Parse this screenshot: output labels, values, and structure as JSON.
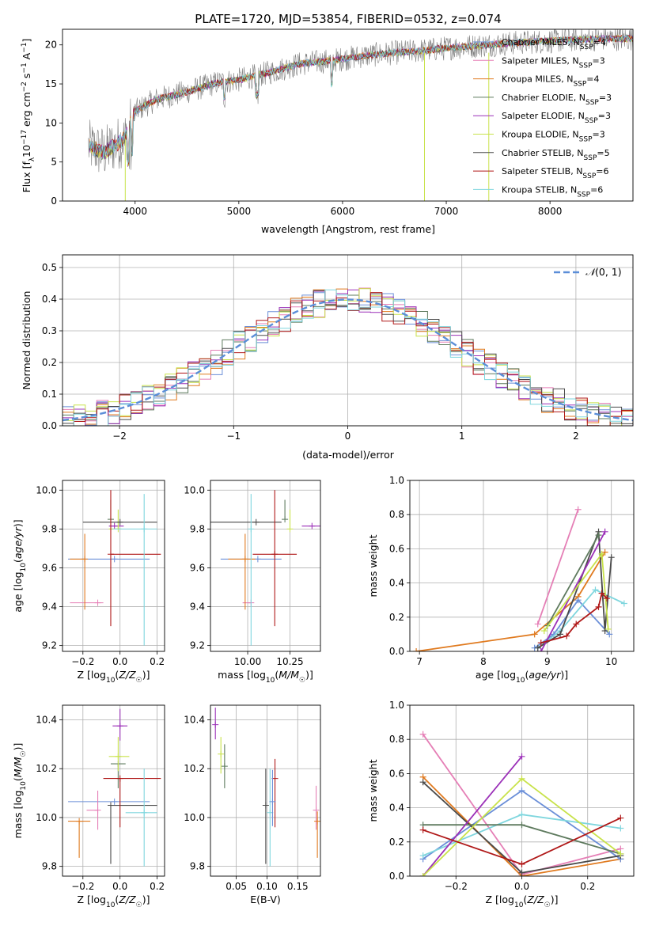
{
  "colors": {
    "Chabrier MILES": "#6b8fd8",
    "Salpeter MILES": "#e57fb6",
    "Kroupa MILES": "#e07a1f",
    "Chabrier ELODIE": "#5e7a5e",
    "Salpeter ELODIE": "#9b30b8",
    "Kroupa ELODIE": "#c8e24a",
    "Chabrier STELIB": "#4a4a4a",
    "Salpeter STELIB": "#b01818",
    "Kroupa STELIB": "#7fd6de"
  },
  "chart_data": [
    {
      "id": "spectrum",
      "type": "line",
      "title": "PLATE=1720, MJD=53854, FIBERID=0532, z=0.074",
      "xlabel": "wavelength [Angstrom, rest frame]",
      "ylabel": "Flux [f_λ10^-17 erg cm^-2 s^-1 A^-1]",
      "xlim": [
        3300,
        8800
      ],
      "ylim": [
        0,
        22
      ],
      "xticks": [
        4000,
        5000,
        6000,
        7000,
        8000
      ],
      "yticks": [
        0,
        5,
        10,
        15,
        20
      ],
      "legend": [
        "Chabrier MILES, N_SSP=4",
        "Salpeter MILES, N_SSP=3",
        "Kroupa MILES, N_SSP=4",
        "Chabrier ELODIE, N_SSP=3",
        "Salpeter ELODIE, N_SSP=3",
        "Kroupa ELODIE, N_SSP=3",
        "Chabrier STELIB, N_SSP=5",
        "Salpeter STELIB, N_SSP=6",
        "Kroupa STELIB, N_SSP=6"
      ],
      "data_trend": {
        "x": [
          3550,
          3700,
          3900,
          4000,
          4200,
          4500,
          4800,
          5000,
          5300,
          5600,
          5900,
          6200,
          6500,
          6800,
          7100,
          7400,
          7700,
          8000,
          8300,
          8600
        ],
        "y": [
          7.0,
          6.2,
          8.0,
          11.5,
          13.0,
          14.0,
          15.2,
          15.5,
          16.5,
          17.6,
          18.0,
          18.6,
          19.0,
          19.3,
          19.7,
          20.0,
          20.3,
          20.5,
          20.7,
          20.8
        ]
      }
    },
    {
      "id": "residuals",
      "type": "line",
      "xlabel": "(data-model)/error",
      "ylabel": "Normed distribution",
      "xlim": [
        -2.5,
        2.5
      ],
      "ylim": [
        0,
        0.54
      ],
      "xticks": [
        -2,
        -1,
        0,
        1,
        2
      ],
      "yticks": [
        0.0,
        0.1,
        0.2,
        0.3,
        0.4,
        0.5
      ],
      "legend": [
        "N(0,1)"
      ],
      "gaussian": {
        "mean": 0,
        "sigma": 1
      }
    },
    {
      "id": "age_vs_Z",
      "type": "scatter",
      "xlabel": "Z [log10(Z/Z☉)]",
      "ylabel": "age [log10(age/yr)]",
      "xlim": [
        -0.31,
        0.24
      ],
      "ylim": [
        9.17,
        10.05
      ],
      "xticks": [
        -0.2,
        0.0,
        0.2
      ],
      "yticks": [
        9.2,
        9.4,
        9.6,
        9.8,
        10.0
      ],
      "points": [
        {
          "model": "Chabrier MILES",
          "x": -0.03,
          "xerr": [
            0.25,
            0.19
          ],
          "y": 9.645,
          "yerr": [
            0.0,
            0.0
          ]
        },
        {
          "model": "Salpeter MILES",
          "x": -0.12,
          "xerr": [
            0.15,
            0.03
          ],
          "y": 9.42,
          "yerr": [
            0.0,
            0.0
          ]
        },
        {
          "model": "Kroupa MILES",
          "x": -0.19,
          "xerr": [
            0.08,
            0.0
          ],
          "y": 9.645,
          "yerr": [
            0.26,
            0.13
          ]
        },
        {
          "model": "Chabrier ELODIE",
          "x": -0.05,
          "xerr": [
            0.0,
            0.0
          ],
          "y": 9.85,
          "yerr": [
            0.0,
            0.1
          ]
        },
        {
          "model": "Salpeter ELODIE",
          "x": -0.03,
          "xerr": [
            0.03,
            0.05
          ],
          "y": 9.815,
          "yerr": [
            0.0,
            0.0
          ]
        },
        {
          "model": "Kroupa ELODIE",
          "x": -0.01,
          "xerr": [
            0.05,
            0.01
          ],
          "y": 9.8,
          "yerr": [
            0.0,
            0.1
          ]
        },
        {
          "model": "Chabrier STELIB",
          "x": 0.0,
          "xerr": [
            0.2,
            0.2
          ],
          "y": 9.835,
          "yerr": [
            0.0,
            0.0
          ]
        },
        {
          "model": "Salpeter STELIB",
          "x": -0.05,
          "xerr": [
            0.0,
            0.27
          ],
          "y": 9.67,
          "yerr": [
            0.37,
            0.33
          ]
        },
        {
          "model": "Kroupa STELIB",
          "x": 0.13,
          "xerr": [
            0.17,
            0.07
          ],
          "y": 9.8,
          "yerr": [
            0.6,
            0.18
          ]
        }
      ]
    },
    {
      "id": "age_vs_mass",
      "type": "scatter",
      "xlabel": "mass [log10(M/M☉)]",
      "ylabel": "",
      "xlim": [
        9.78,
        10.43
      ],
      "ylim": [
        9.17,
        10.05
      ],
      "xticks": [
        10.0,
        10.25
      ],
      "yticks": [
        9.2,
        9.4,
        9.6,
        9.8,
        10.0
      ],
      "points": [
        {
          "model": "Chabrier MILES",
          "x": 10.06,
          "xerr": [
            0.22,
            0.14
          ],
          "y": 9.645,
          "yerr": [
            0.0,
            0.0
          ]
        },
        {
          "model": "Salpeter MILES",
          "x": 10.02,
          "xerr": [
            0.05,
            0.0
          ],
          "y": 9.42,
          "yerr": [
            0.0,
            0.0
          ]
        },
        {
          "model": "Kroupa MILES",
          "x": 9.985,
          "xerr": [
            0.1,
            0.06
          ],
          "y": 9.645,
          "yerr": [
            0.26,
            0.13
          ]
        },
        {
          "model": "Chabrier ELODIE",
          "x": 10.22,
          "xerr": [
            0.0,
            0.0
          ],
          "y": 9.85,
          "yerr": [
            0.0,
            0.1
          ]
        },
        {
          "model": "Salpeter ELODIE",
          "x": 10.38,
          "xerr": [
            0.06,
            0.06
          ],
          "y": 9.815,
          "yerr": [
            0.0,
            0.0
          ]
        },
        {
          "model": "Kroupa ELODIE",
          "x": 10.25,
          "xerr": [
            0.0,
            0.0
          ],
          "y": 9.8,
          "yerr": [
            0.0,
            0.1
          ]
        },
        {
          "model": "Chabrier STELIB",
          "x": 10.05,
          "xerr": [
            0.3,
            0.15
          ],
          "y": 9.835,
          "yerr": [
            0.0,
            0.0
          ]
        },
        {
          "model": "Salpeter STELIB",
          "x": 10.16,
          "xerr": [
            0.13,
            0.13
          ],
          "y": 9.67,
          "yerr": [
            0.37,
            0.33
          ]
        },
        {
          "model": "Kroupa STELIB",
          "x": 10.02,
          "xerr": [
            0.0,
            0.0
          ],
          "y": 9.8,
          "yerr": [
            0.6,
            0.18
          ]
        }
      ]
    },
    {
      "id": "weights_vs_age",
      "type": "line",
      "xlabel": "age [log10(age/yr)]",
      "ylabel": "mass weight",
      "xlim": [
        6.85,
        10.35
      ],
      "ylim": [
        0,
        1.0
      ],
      "xticks": [
        7,
        8,
        9,
        10
      ],
      "yticks": [
        0.0,
        0.2,
        0.4,
        0.6,
        0.8,
        1.0
      ],
      "series": [
        {
          "model": "Salpeter MILES",
          "x": [
            8.85,
            9.48
          ],
          "y": [
            0.16,
            0.83
          ]
        },
        {
          "model": "Kroupa MILES",
          "x": [
            6.95,
            8.8,
            9.48,
            9.9
          ],
          "y": [
            0.0,
            0.1,
            0.32,
            0.58
          ]
        },
        {
          "model": "Chabrier MILES",
          "x": [
            8.8,
            9.1,
            9.48,
            9.97
          ],
          "y": [
            0.02,
            0.1,
            0.3,
            0.1
          ]
        },
        {
          "model": "Kroupa STELIB",
          "x": [
            8.85,
            9.2,
            9.75,
            10.2
          ],
          "y": [
            0.02,
            0.12,
            0.36,
            0.28
          ]
        },
        {
          "model": "Chabrier STELIB",
          "x": [
            8.85,
            9.2,
            9.8,
            9.9,
            10.0
          ],
          "y": [
            0.02,
            0.1,
            0.7,
            0.12,
            0.55
          ]
        },
        {
          "model": "Chabrier ELODIE",
          "x": [
            9.0,
            9.8
          ],
          "y": [
            0.15,
            0.68
          ]
        },
        {
          "model": "Salpeter ELODIE",
          "x": [
            8.9,
            9.9
          ],
          "y": [
            0.0,
            0.7
          ]
        },
        {
          "model": "Kroupa ELODIE",
          "x": [
            8.95,
            9.85,
            9.95
          ],
          "y": [
            0.12,
            0.57,
            0.13
          ]
        },
        {
          "model": "Salpeter STELIB",
          "x": [
            8.9,
            9.3,
            9.45,
            9.8,
            9.85,
            9.93
          ],
          "y": [
            0.05,
            0.09,
            0.16,
            0.26,
            0.34,
            0.31
          ]
        }
      ]
    },
    {
      "id": "mass_vs_Z",
      "type": "scatter",
      "xlabel": "Z [log10(Z/Z☉)]",
      "ylabel": "mass [log10(M/M☉)]",
      "xlim": [
        -0.31,
        0.24
      ],
      "ylim": [
        9.76,
        10.46
      ],
      "xticks": [
        -0.2,
        0.0,
        0.2
      ],
      "yticks": [
        9.8,
        10.0,
        10.2,
        10.4
      ],
      "points": [
        {
          "model": "Chabrier MILES",
          "x": -0.03,
          "xerr": [
            0.25,
            0.19
          ],
          "y": 10.065,
          "yerr": [
            0.0,
            0.0
          ]
        },
        {
          "model": "Salpeter MILES",
          "x": -0.12,
          "xerr": [
            0.06,
            0.0
          ],
          "y": 10.03,
          "yerr": [
            0.08,
            0.08
          ]
        },
        {
          "model": "Kroupa MILES",
          "x": -0.22,
          "xerr": [
            0.06,
            0.06
          ],
          "y": 9.985,
          "yerr": [
            0.15,
            0.0
          ]
        },
        {
          "model": "Chabrier ELODIE",
          "x": -0.01,
          "xerr": [
            0.04,
            0.04
          ],
          "y": 10.22,
          "yerr": [
            0.1,
            0.0
          ]
        },
        {
          "model": "Salpeter ELODIE",
          "x": 0.0,
          "xerr": [
            0.04,
            0.04
          ],
          "y": 10.375,
          "yerr": [
            0.06,
            0.07
          ]
        },
        {
          "model": "Kroupa ELODIE",
          "x": -0.01,
          "xerr": [
            0.05,
            0.06
          ],
          "y": 10.25,
          "yerr": [
            0.06,
            0.08
          ]
        },
        {
          "model": "Chabrier STELIB",
          "x": -0.05,
          "xerr": [
            0.0,
            0.25
          ],
          "y": 10.05,
          "yerr": [
            0.24,
            0.0
          ]
        },
        {
          "model": "Salpeter STELIB",
          "x": 0.0,
          "xerr": [
            0.09,
            0.22
          ],
          "y": 10.16,
          "yerr": [
            0.2,
            0.0
          ]
        },
        {
          "model": "Kroupa STELIB",
          "x": 0.13,
          "xerr": [
            0.1,
            0.07
          ],
          "y": 10.02,
          "yerr": [
            0.22,
            0.18
          ]
        }
      ]
    },
    {
      "id": "mass_vs_EBV",
      "type": "scatter",
      "xlabel": "E(B-V)",
      "ylabel": "",
      "xlim": [
        0.008,
        0.187
      ],
      "ylim": [
        9.76,
        10.46
      ],
      "xticks": [
        0.05,
        0.1,
        0.15
      ],
      "yticks": [
        9.8,
        10.0,
        10.2,
        10.4
      ],
      "points": [
        {
          "model": "Salpeter ELODIE",
          "x": 0.016,
          "y": 10.38,
          "yerr": [
            0.06,
            0.07
          ]
        },
        {
          "model": "Kroupa ELODIE",
          "x": 0.025,
          "y": 10.26,
          "yerr": [
            0.08,
            0.07
          ]
        },
        {
          "model": "Chabrier ELODIE",
          "x": 0.031,
          "y": 10.21,
          "yerr": [
            0.09,
            0.09
          ]
        },
        {
          "model": "Chabrier STELIB",
          "x": 0.098,
          "y": 10.05,
          "yerr": [
            0.24,
            0.15
          ]
        },
        {
          "model": "Kroupa STELIB",
          "x": 0.105,
          "y": 10.02,
          "yerr": [
            0.22,
            0.18
          ]
        },
        {
          "model": "Salpeter STELIB",
          "x": 0.113,
          "y": 10.16,
          "yerr": [
            0.2,
            0.08
          ]
        },
        {
          "model": "Chabrier MILES",
          "x": 0.109,
          "y": 10.065,
          "yerr": [
            0.1,
            0.13
          ]
        },
        {
          "model": "Salpeter MILES",
          "x": 0.18,
          "y": 10.03,
          "yerr": [
            0.08,
            0.1
          ]
        },
        {
          "model": "Kroupa MILES",
          "x": 0.182,
          "y": 9.985,
          "yerr": [
            0.15,
            0.04
          ]
        }
      ]
    },
    {
      "id": "weights_vs_Z",
      "type": "line",
      "xlabel": "Z [log10(Z/Z☉)]",
      "ylabel": "mass weight",
      "xlim": [
        -0.34,
        0.34
      ],
      "ylim": [
        0,
        1.0
      ],
      "xticks": [
        -0.2,
        0.0,
        0.2
      ],
      "yticks": [
        0.0,
        0.2,
        0.4,
        0.6,
        0.8,
        1.0
      ],
      "series": [
        {
          "model": "Salpeter MILES",
          "x": [
            -0.3,
            0.0,
            0.3
          ],
          "y": [
            0.83,
            0.01,
            0.16
          ]
        },
        {
          "model": "Kroupa MILES",
          "x": [
            -0.3,
            0.0,
            0.3
          ],
          "y": [
            0.58,
            0.0,
            0.1
          ]
        },
        {
          "model": "Chabrier MILES",
          "x": [
            -0.3,
            0.0,
            0.3
          ],
          "y": [
            0.1,
            0.5,
            0.1
          ]
        },
        {
          "model": "Kroupa STELIB",
          "x": [
            -0.3,
            0.0,
            0.3
          ],
          "y": [
            0.12,
            0.36,
            0.28
          ]
        },
        {
          "model": "Chabrier STELIB",
          "x": [
            -0.3,
            0.0,
            0.3
          ],
          "y": [
            0.55,
            0.02,
            0.12
          ]
        },
        {
          "model": "Chabrier ELODIE",
          "x": [
            -0.3,
            0.0,
            0.3
          ],
          "y": [
            0.3,
            0.3,
            0.13
          ]
        },
        {
          "model": "Salpeter ELODIE",
          "x": [
            -0.3,
            0.0
          ],
          "y": [
            0.0,
            0.7
          ]
        },
        {
          "model": "Kroupa ELODIE",
          "x": [
            -0.3,
            0.0,
            0.3
          ],
          "y": [
            0.0,
            0.57,
            0.13
          ]
        },
        {
          "model": "Salpeter STELIB",
          "x": [
            -0.3,
            0.0,
            0.3
          ],
          "y": [
            0.27,
            0.07,
            0.34
          ]
        }
      ]
    }
  ]
}
